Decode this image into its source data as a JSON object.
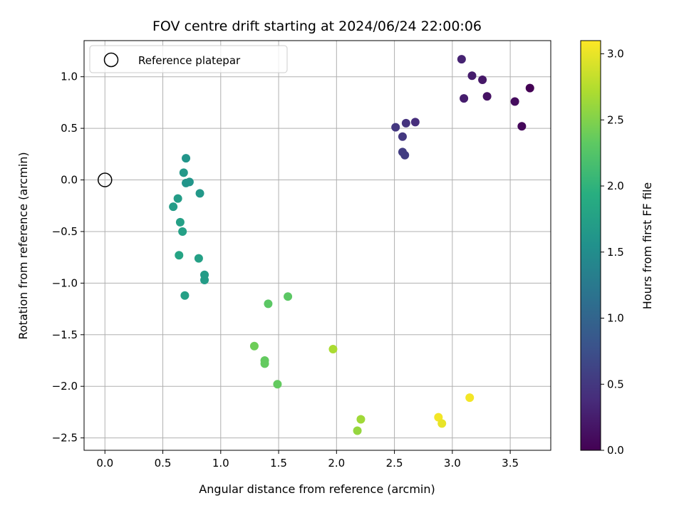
{
  "chart_data": {
    "type": "scatter",
    "title": "FOV centre drift starting at 2024/06/24 22:00:06",
    "xlabel": "Angular distance from reference (arcmin)",
    "ylabel": "Rotation from reference (arcmin)",
    "xlim": [
      -0.18,
      3.85
    ],
    "ylim": [
      -2.62,
      1.35
    ],
    "xticks": [
      0.0,
      0.5,
      1.0,
      1.5,
      2.0,
      2.5,
      3.0,
      3.5
    ],
    "xtick_labels": [
      "0.0",
      "0.5",
      "1.0",
      "1.5",
      "2.0",
      "2.5",
      "3.0",
      "3.5"
    ],
    "yticks": [
      1.0,
      0.5,
      0.0,
      -0.5,
      -1.0,
      -1.5,
      -2.0,
      -2.5
    ],
    "ytick_labels": [
      "1.0",
      "0.5",
      "0.0",
      "−0.5",
      "−1.0",
      "−1.5",
      "−2.0",
      "−2.5"
    ],
    "grid": true,
    "legend": {
      "position": "top-left",
      "entries": [
        "Reference platepar"
      ]
    },
    "reference_point": {
      "x": 0.0,
      "y": 0.0
    },
    "colorbar": {
      "label": "Hours from first FF file",
      "range": [
        0.0,
        3.1
      ],
      "ticks": [
        0.0,
        0.5,
        1.0,
        1.5,
        2.0,
        2.5,
        3.0
      ],
      "tick_labels": [
        "0.0",
        "0.5",
        "1.0",
        "1.5",
        "2.0",
        "2.5",
        "3.0"
      ],
      "colormap": "viridis"
    },
    "points": [
      {
        "x": 3.67,
        "y": 0.89,
        "c": 0.0
      },
      {
        "x": 3.6,
        "y": 0.52,
        "c": 0.05
      },
      {
        "x": 3.54,
        "y": 0.76,
        "c": 0.1
      },
      {
        "x": 3.3,
        "y": 0.81,
        "c": 0.15
      },
      {
        "x": 3.26,
        "y": 0.97,
        "c": 0.2
      },
      {
        "x": 3.17,
        "y": 1.01,
        "c": 0.25
      },
      {
        "x": 3.1,
        "y": 0.79,
        "c": 0.25
      },
      {
        "x": 3.08,
        "y": 1.17,
        "c": 0.3
      },
      {
        "x": 2.68,
        "y": 0.56,
        "c": 0.4
      },
      {
        "x": 2.6,
        "y": 0.55,
        "c": 0.45
      },
      {
        "x": 2.51,
        "y": 0.51,
        "c": 0.5
      },
      {
        "x": 2.57,
        "y": 0.42,
        "c": 0.5
      },
      {
        "x": 2.57,
        "y": 0.27,
        "c": 0.55
      },
      {
        "x": 2.59,
        "y": 0.24,
        "c": 0.55
      },
      {
        "x": 0.7,
        "y": 0.21,
        "c": 1.6
      },
      {
        "x": 0.68,
        "y": 0.07,
        "c": 1.65
      },
      {
        "x": 0.7,
        "y": -0.03,
        "c": 1.6
      },
      {
        "x": 0.73,
        "y": -0.02,
        "c": 1.6
      },
      {
        "x": 0.82,
        "y": -0.13,
        "c": 1.65
      },
      {
        "x": 0.63,
        "y": -0.18,
        "c": 1.7
      },
      {
        "x": 0.59,
        "y": -0.26,
        "c": 1.7
      },
      {
        "x": 0.65,
        "y": -0.41,
        "c": 1.75
      },
      {
        "x": 0.67,
        "y": -0.5,
        "c": 1.75
      },
      {
        "x": 0.64,
        "y": -0.73,
        "c": 1.8
      },
      {
        "x": 0.81,
        "y": -0.76,
        "c": 1.75
      },
      {
        "x": 0.86,
        "y": -0.92,
        "c": 1.7
      },
      {
        "x": 0.86,
        "y": -0.97,
        "c": 1.7
      },
      {
        "x": 0.69,
        "y": -1.12,
        "c": 1.75
      },
      {
        "x": 1.58,
        "y": -1.13,
        "c": 2.3
      },
      {
        "x": 1.41,
        "y": -1.2,
        "c": 2.3
      },
      {
        "x": 1.29,
        "y": -1.61,
        "c": 2.4
      },
      {
        "x": 1.38,
        "y": -1.75,
        "c": 2.35
      },
      {
        "x": 1.38,
        "y": -1.78,
        "c": 2.35
      },
      {
        "x": 1.49,
        "y": -1.98,
        "c": 2.35
      },
      {
        "x": 1.97,
        "y": -1.64,
        "c": 2.7
      },
      {
        "x": 2.21,
        "y": -2.32,
        "c": 2.65
      },
      {
        "x": 2.18,
        "y": -2.43,
        "c": 2.6
      },
      {
        "x": 2.88,
        "y": -2.3,
        "c": 3.05
      },
      {
        "x": 2.91,
        "y": -2.36,
        "c": 3.0
      },
      {
        "x": 3.15,
        "y": -2.11,
        "c": 3.05
      }
    ]
  }
}
